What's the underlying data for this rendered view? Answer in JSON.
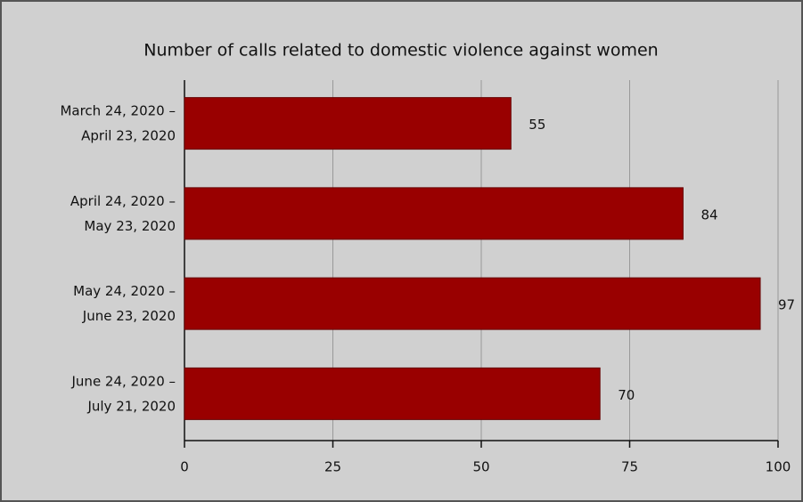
{
  "chart_data": {
    "type": "bar",
    "orientation": "horizontal",
    "title": "Number of calls related to domestic violence against women",
    "categories": [
      "March 24, 2020 – April 23, 2020",
      "April 24, 2020 – May 23, 2020",
      "May 24, 2020 – June 23, 2020",
      "June 24, 2020 – July 21, 2020"
    ],
    "values": [
      55,
      84,
      97,
      70
    ],
    "color": "#990000",
    "xlim": [
      0,
      100
    ],
    "xticks": [
      0,
      25,
      50,
      75,
      100
    ],
    "grid": true
  }
}
